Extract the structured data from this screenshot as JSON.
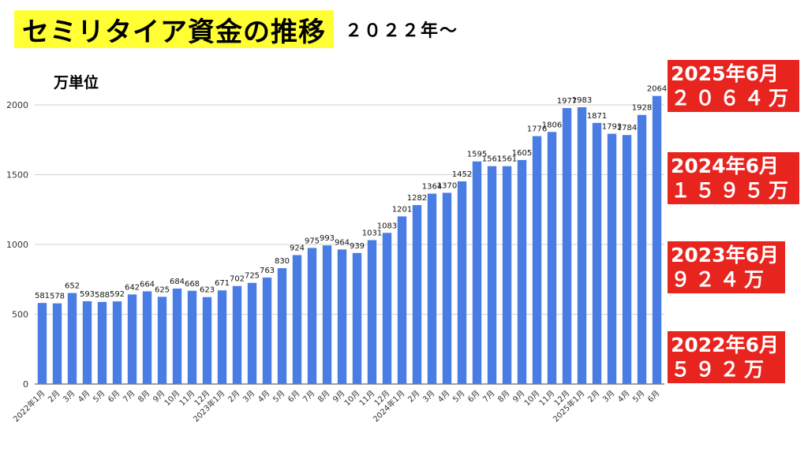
{
  "header": {
    "title": "セミリタイア資金の推移",
    "subtitle": "２０２２年〜"
  },
  "unit_label": "万単位",
  "colors": {
    "bar": "#4a7de3",
    "title_bg": "#ffff33",
    "badge_bg": "#e8241f"
  },
  "callouts": [
    {
      "line1": "2025年6月",
      "line2": "２０６４万"
    },
    {
      "line1": "2024年6月",
      "line2": "１５９５万"
    },
    {
      "line1": "2023年6月",
      "line2": "９２４万"
    },
    {
      "line1": "2022年6月",
      "line2": "５９２万"
    }
  ],
  "chart_data": {
    "type": "bar",
    "ylim": [
      0,
      2000
    ],
    "yticks": [
      0,
      500,
      1000,
      1500,
      2000
    ],
    "grid": true,
    "categories": [
      "2022年1月",
      "2月",
      "3月",
      "4月",
      "5月",
      "6月",
      "7月",
      "8月",
      "9月",
      "10月",
      "11月",
      "12月",
      "2023年1月",
      "2月",
      "3月",
      "4月",
      "5月",
      "6月",
      "7月",
      "8月",
      "9月",
      "10月",
      "11月",
      "12月",
      "2024年1月",
      "2月",
      "3月",
      "4月",
      "5月",
      "6月",
      "7月",
      "8月",
      "9月",
      "10月",
      "11月",
      "12月",
      "2025年1月",
      "2月",
      "3月",
      "4月",
      "5月",
      "6月"
    ],
    "values": [
      581,
      578,
      652,
      593,
      588,
      592,
      642,
      664,
      625,
      684,
      668,
      623,
      671,
      702,
      725,
      763,
      830,
      924,
      975,
      993,
      964,
      939,
      1031,
      1083,
      1201,
      1282,
      1364,
      1370,
      1452,
      1595,
      1561,
      1561,
      1605,
      1776,
      1806,
      1977,
      1983,
      1871,
      1793,
      1784,
      1928,
      2064
    ]
  }
}
